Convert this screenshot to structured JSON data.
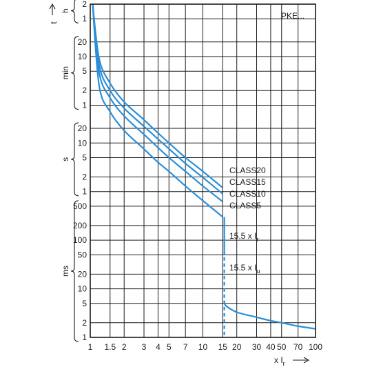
{
  "chart_data": {
    "type": "line",
    "product_label": "PKE...",
    "y_axis_symbol": "t",
    "x_axis_unit": {
      "prefix": "x I",
      "sub": "r"
    },
    "x_ticks": [
      1,
      1.5,
      2,
      3,
      4,
      5,
      7,
      10,
      15,
      20,
      30,
      40,
      50,
      70,
      100
    ],
    "x_tick_labels": [
      "1",
      "1.5",
      "2",
      "3",
      "4",
      "5",
      "7",
      "10",
      "15",
      "20",
      "30",
      "40",
      "50",
      "70",
      "100"
    ],
    "xlim": [
      1,
      100
    ],
    "x_scale": "log",
    "y_scale": "log",
    "y_bands": [
      {
        "unit": "h",
        "ticks": [
          {
            "label": "2",
            "seconds": 7200
          },
          {
            "label": "1",
            "seconds": 3600
          }
        ]
      },
      {
        "unit": "min",
        "ticks": [
          {
            "label": "20",
            "seconds": 1200
          },
          {
            "label": "10",
            "seconds": 600
          },
          {
            "label": "5",
            "seconds": 300
          },
          {
            "label": "2",
            "seconds": 120
          },
          {
            "label": "1",
            "seconds": 60
          }
        ]
      },
      {
        "unit": "s",
        "ticks": [
          {
            "label": "20",
            "seconds": 20
          },
          {
            "label": "10",
            "seconds": 10
          },
          {
            "label": "5",
            "seconds": 5
          },
          {
            "label": "2",
            "seconds": 2
          },
          {
            "label": "1",
            "seconds": 1
          }
        ]
      },
      {
        "unit": "ms",
        "ticks": [
          {
            "label": "500",
            "seconds": 0.5
          },
          {
            "label": "200",
            "seconds": 0.2
          },
          {
            "label": "100",
            "seconds": 0.1
          },
          {
            "label": "50",
            "seconds": 0.05
          },
          {
            "label": "20",
            "seconds": 0.02
          },
          {
            "label": "10",
            "seconds": 0.01
          },
          {
            "label": "5",
            "seconds": 0.005
          },
          {
            "label": "2",
            "seconds": 0.002
          },
          {
            "label": "1",
            "seconds": 0.001
          }
        ]
      }
    ],
    "ylim_seconds": [
      0.001,
      7200
    ],
    "grid": true,
    "series": [
      {
        "name": "CLASS20",
        "values": [
          [
            1.05,
            7200
          ],
          [
            1.2,
            540
          ],
          [
            1.5,
            170
          ],
          [
            2,
            70
          ],
          [
            3,
            30
          ],
          [
            4,
            16
          ],
          [
            5,
            10
          ],
          [
            7,
            5
          ],
          [
            10,
            2.6
          ],
          [
            15,
            1.2
          ]
        ]
      },
      {
        "name": "CLASS15",
        "values": [
          [
            1.05,
            7200
          ],
          [
            1.2,
            400
          ],
          [
            1.5,
            120
          ],
          [
            2,
            52
          ],
          [
            3,
            22
          ],
          [
            4,
            12
          ],
          [
            5,
            7.6
          ],
          [
            7,
            3.8
          ],
          [
            10,
            1.95
          ],
          [
            15,
            0.9
          ]
        ]
      },
      {
        "name": "CLASS10",
        "values": [
          [
            1.05,
            7200
          ],
          [
            1.2,
            280
          ],
          [
            1.5,
            85
          ],
          [
            2,
            36
          ],
          [
            3,
            15
          ],
          [
            4,
            8
          ],
          [
            5,
            5
          ],
          [
            7,
            2.6
          ],
          [
            10,
            1.3
          ],
          [
            15,
            0.62
          ]
        ]
      },
      {
        "name": "CLASS5",
        "values": [
          [
            1.05,
            7200
          ],
          [
            1.2,
            150
          ],
          [
            1.5,
            44
          ],
          [
            2,
            18
          ],
          [
            3,
            7.5
          ],
          [
            4,
            4
          ],
          [
            5,
            2.6
          ],
          [
            7,
            1.3
          ],
          [
            10,
            0.65
          ],
          [
            15,
            0.3
          ]
        ]
      }
    ],
    "short_circuit_curve": {
      "values": [
        [
          15,
          0.0055
        ],
        [
          16,
          0.0045
        ],
        [
          20,
          0.0033
        ],
        [
          30,
          0.0026
        ],
        [
          40,
          0.0022
        ],
        [
          50,
          0.002
        ],
        [
          70,
          0.0017
        ],
        [
          100,
          0.0015
        ]
      ]
    },
    "thresholds": [
      {
        "x": 15.5,
        "label_main": "15.5 x I",
        "label_sub": "r",
        "style": "solid",
        "y_from": 0.3,
        "y_to": 0.06
      },
      {
        "x": 15.5,
        "label_main": "15.5 x I",
        "label_sub": "u",
        "style": "dashed",
        "y_from": 0.06,
        "y_to": 0.001
      }
    ]
  }
}
